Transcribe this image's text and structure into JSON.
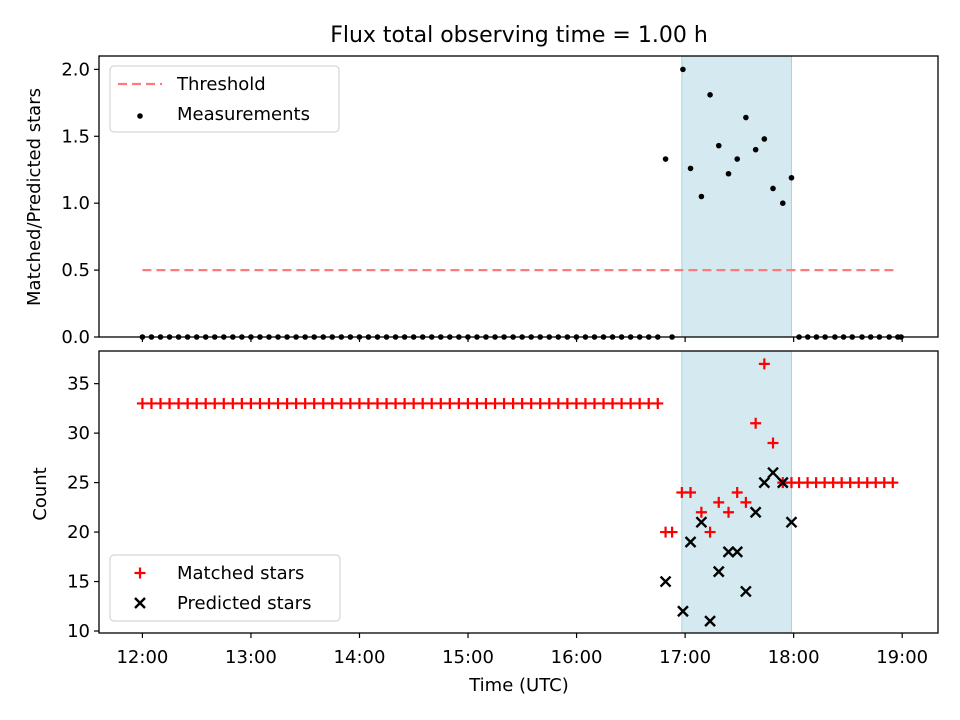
{
  "chart_data": [
    {
      "type": "scatter",
      "title": "Flux total observing time = 1.00 h",
      "xlabel": "",
      "ylabel": "Matched/Predicted stars",
      "xlim": [
        11.6,
        19.33
      ],
      "ylim": [
        0,
        2.1
      ],
      "yticks": [
        0.0,
        0.5,
        1.0,
        1.5,
        2.0
      ],
      "ytick_labels": [
        "0.0",
        "0.5",
        "1.0",
        "1.5",
        "2.0"
      ],
      "shaded_interval": {
        "x": [
          16.97,
          17.98
        ],
        "color": "#d4eaf0"
      },
      "legend": {
        "position": "upper left",
        "entries": [
          "Threshold",
          "Measurements"
        ]
      },
      "series": [
        {
          "name": "Threshold",
          "kind": "dashed-line",
          "color": "#ff7b7b",
          "x": [
            12.0,
            18.95
          ],
          "y": [
            0.5,
            0.5
          ]
        },
        {
          "name": "Measurements",
          "kind": "dot",
          "color": "#000000",
          "x_zero_range": {
            "start": 12.0,
            "end": 16.75,
            "step": 0.0833
          },
          "x_zero_extra": [
            16.88,
            18.05,
            18.13,
            18.21,
            18.29,
            18.38,
            18.46,
            18.54,
            18.63,
            18.71,
            18.79,
            18.88,
            18.96,
            18.99
          ],
          "points": [
            [
              16.82,
              1.33
            ],
            [
              16.98,
              2.0
            ],
            [
              17.05,
              1.26
            ],
            [
              17.15,
              1.05
            ],
            [
              17.23,
              1.81
            ],
            [
              17.31,
              1.43
            ],
            [
              17.4,
              1.22
            ],
            [
              17.48,
              1.33
            ],
            [
              17.56,
              1.64
            ],
            [
              17.65,
              1.4
            ],
            [
              17.73,
              1.48
            ],
            [
              17.81,
              1.11
            ],
            [
              17.9,
              1.0
            ],
            [
              17.98,
              1.19
            ]
          ]
        }
      ]
    },
    {
      "type": "scatter",
      "title": "",
      "xlabel": "Time (UTC)",
      "ylabel": "Count",
      "xlim": [
        11.6,
        19.33
      ],
      "ylim": [
        9.8,
        38.3
      ],
      "yticks": [
        10,
        15,
        20,
        25,
        30,
        35
      ],
      "ytick_labels": [
        "10",
        "15",
        "20",
        "25",
        "30",
        "35"
      ],
      "xticks": [
        12,
        13,
        14,
        15,
        16,
        17,
        18,
        19
      ],
      "xtick_labels": [
        "12:00",
        "13:00",
        "14:00",
        "15:00",
        "16:00",
        "17:00",
        "18:00",
        "19:00"
      ],
      "shaded_interval": {
        "x": [
          16.97,
          17.98
        ],
        "color": "#d4eaf0"
      },
      "legend": {
        "position": "lower left",
        "entries": [
          "Matched stars",
          "Predicted stars"
        ]
      },
      "series": [
        {
          "name": "Matched stars",
          "kind": "plus",
          "color": "#ff0000",
          "const_range": {
            "start": 12.0,
            "end": 16.75,
            "step": 0.0833,
            "value": 33
          },
          "const_range_2": {
            "start": 18.05,
            "end": 18.99,
            "step": 0.0785,
            "value": 25
          },
          "points": [
            [
              16.82,
              20
            ],
            [
              16.88,
              20
            ],
            [
              16.97,
              24
            ],
            [
              17.05,
              24
            ],
            [
              17.15,
              22
            ],
            [
              17.23,
              20
            ],
            [
              17.31,
              23
            ],
            [
              17.4,
              22
            ],
            [
              17.48,
              24
            ],
            [
              17.56,
              23
            ],
            [
              17.65,
              31
            ],
            [
              17.73,
              37
            ],
            [
              17.81,
              29
            ],
            [
              17.9,
              25
            ],
            [
              17.98,
              25
            ]
          ]
        },
        {
          "name": "Predicted stars",
          "kind": "x",
          "color": "#000000",
          "points": [
            [
              16.82,
              15
            ],
            [
              16.98,
              12
            ],
            [
              17.05,
              19
            ],
            [
              17.15,
              21
            ],
            [
              17.23,
              11
            ],
            [
              17.31,
              16
            ],
            [
              17.4,
              18
            ],
            [
              17.48,
              18
            ],
            [
              17.56,
              14
            ],
            [
              17.65,
              22
            ],
            [
              17.73,
              25
            ],
            [
              17.81,
              26
            ],
            [
              17.9,
              25
            ],
            [
              17.98,
              21
            ]
          ]
        }
      ]
    }
  ]
}
